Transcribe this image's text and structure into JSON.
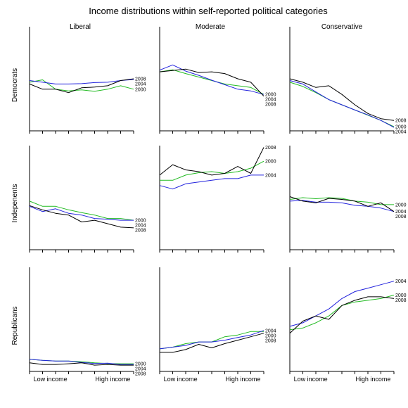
{
  "chart_data": {
    "type": "line",
    "title": "Income distributions within self-reported political categories",
    "columns": [
      "Liberal",
      "Moderate",
      "Conservative"
    ],
    "rows": [
      "Democrats",
      "Indepenents",
      "Republicans"
    ],
    "x_tick_labels": [
      "Low income",
      "High income"
    ],
    "x_points": 9,
    "ylim": [
      0,
      0.3
    ],
    "grid": false,
    "series_colors": {
      "2000": "#22bb22",
      "2004": "#2222dd",
      "2008": "#000000"
    },
    "panels": [
      {
        "row": "Democrats",
        "column": "Liberal",
        "series": [
          {
            "year": "2000",
            "values": [
              0.14,
              0.147,
              0.12,
              0.115,
              0.118,
              0.114,
              0.12,
              0.13,
              0.12
            ]
          },
          {
            "year": "2004",
            "values": [
              0.145,
              0.14,
              0.135,
              0.135,
              0.136,
              0.139,
              0.14,
              0.145,
              0.148
            ]
          },
          {
            "year": "2008",
            "values": [
              0.135,
              0.12,
              0.12,
              0.11,
              0.124,
              0.126,
              0.13,
              0.145,
              0.15
            ]
          }
        ]
      },
      {
        "row": "Democrats",
        "column": "Moderate",
        "series": [
          {
            "year": "2000",
            "values": [
              0.17,
              0.176,
              0.165,
              0.155,
              0.145,
              0.135,
              0.13,
              0.125,
              0.105
            ]
          },
          {
            "year": "2004",
            "values": [
              0.175,
              0.19,
              0.172,
              0.16,
              0.146,
              0.133,
              0.12,
              0.115,
              0.105
            ]
          },
          {
            "year": "2008",
            "values": [
              0.17,
              0.174,
              0.178,
              0.168,
              0.17,
              0.165,
              0.15,
              0.14,
              0.1
            ]
          }
        ]
      },
      {
        "row": "Democrats",
        "column": "Conservative",
        "series": [
          {
            "year": "2000",
            "values": [
              0.14,
              0.128,
              0.11,
              0.09,
              0.075,
              0.06,
              0.045,
              0.03,
              0.012
            ]
          },
          {
            "year": "2004",
            "values": [
              0.145,
              0.135,
              0.112,
              0.09,
              0.075,
              0.06,
              0.046,
              0.03,
              0.01
            ]
          },
          {
            "year": "2008",
            "values": [
              0.15,
              0.14,
              0.125,
              0.13,
              0.105,
              0.075,
              0.05,
              0.035,
              0.03
            ]
          }
        ]
      },
      {
        "row": "Indepenents",
        "column": "Liberal",
        "series": [
          {
            "year": "2000",
            "values": [
              0.14,
              0.125,
              0.125,
              0.115,
              0.107,
              0.1,
              0.09,
              0.09,
              0.085
            ]
          },
          {
            "year": "2004",
            "values": [
              0.125,
              0.11,
              0.118,
              0.105,
              0.1,
              0.09,
              0.088,
              0.085,
              0.085
            ]
          },
          {
            "year": "2008",
            "values": [
              0.127,
              0.115,
              0.105,
              0.1,
              0.08,
              0.085,
              0.075,
              0.065,
              0.063
            ]
          }
        ]
      },
      {
        "row": "Indepenents",
        "column": "Moderate",
        "series": [
          {
            "year": "2000",
            "values": [
              0.2,
              0.2,
              0.215,
              0.222,
              0.225,
              0.22,
              0.225,
              0.235,
              0.255
            ]
          },
          {
            "year": "2004",
            "values": [
              0.185,
              0.175,
              0.19,
              0.195,
              0.2,
              0.205,
              0.205,
              0.215,
              0.215
            ]
          },
          {
            "year": "2008",
            "values": [
              0.215,
              0.245,
              0.23,
              0.225,
              0.215,
              0.22,
              0.24,
              0.22,
              0.295
            ]
          }
        ]
      },
      {
        "row": "Indepenents",
        "column": "Conservative",
        "series": [
          {
            "year": "2000",
            "values": [
              0.145,
              0.15,
              0.147,
              0.15,
              0.148,
              0.14,
              0.137,
              0.13,
              0.13
            ]
          },
          {
            "year": "2004",
            "values": [
              0.14,
              0.142,
              0.137,
              0.137,
              0.135,
              0.128,
              0.125,
              0.12,
              0.11
            ]
          },
          {
            "year": "2008",
            "values": [
              0.153,
              0.14,
              0.135,
              0.148,
              0.145,
              0.14,
              0.125,
              0.135,
              0.11
            ]
          }
        ]
      },
      {
        "row": "Republicans",
        "column": "Liberal",
        "series": [
          {
            "year": "2000",
            "values": [
              0.035,
              0.032,
              0.03,
              0.03,
              0.028,
              0.025,
              0.023,
              0.022,
              0.022
            ]
          },
          {
            "year": "2004",
            "values": [
              0.035,
              0.032,
              0.03,
              0.03,
              0.026,
              0.023,
              0.024,
              0.02,
              0.02
            ]
          },
          {
            "year": "2008",
            "values": [
              0.025,
              0.02,
              0.02,
              0.022,
              0.025,
              0.018,
              0.02,
              0.018,
              0.018
            ]
          }
        ]
      },
      {
        "row": "Republicans",
        "column": "Moderate",
        "series": [
          {
            "year": "2000",
            "values": [
              0.065,
              0.07,
              0.08,
              0.085,
              0.085,
              0.1,
              0.105,
              0.115,
              0.115
            ]
          },
          {
            "year": "2004",
            "values": [
              0.065,
              0.07,
              0.075,
              0.085,
              0.085,
              0.09,
              0.098,
              0.105,
              0.118
            ]
          },
          {
            "year": "2008",
            "values": [
              0.055,
              0.055,
              0.063,
              0.078,
              0.068,
              0.08,
              0.09,
              0.1,
              0.11
            ]
          }
        ]
      },
      {
        "row": "Republicans",
        "column": "Conservative",
        "series": [
          {
            "year": "2000",
            "values": [
              0.12,
              0.125,
              0.14,
              0.16,
              0.19,
              0.2,
              0.205,
              0.21,
              0.22
            ]
          },
          {
            "year": "2004",
            "values": [
              0.13,
              0.14,
              0.16,
              0.18,
              0.21,
              0.23,
              0.24,
              0.25,
              0.26
            ]
          },
          {
            "year": "2008",
            "values": [
              0.11,
              0.145,
              0.16,
              0.15,
              0.19,
              0.205,
              0.215,
              0.215,
              0.21
            ]
          }
        ]
      }
    ]
  }
}
